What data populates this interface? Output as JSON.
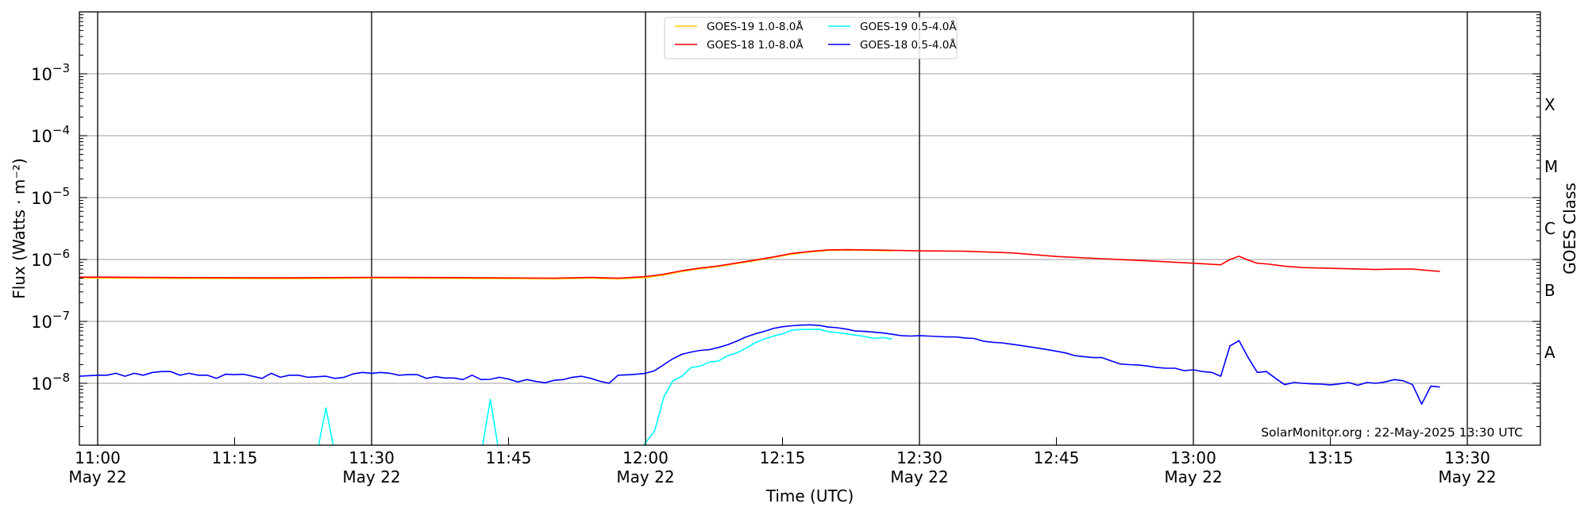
{
  "chart_data": {
    "type": "line",
    "title": "",
    "xlabel": "Time (UTC)",
    "ylabel": "Flux (Watts · m⁻²)",
    "ylabel_right": "GOES Class",
    "x_unit": "minutes after 11:00 UTC, 22 May 2025",
    "xlim_minutes": [
      -2,
      158
    ],
    "ylim": [
      1e-09,
      0.01
    ],
    "yscale": "log",
    "grid": "horizontal at decades, vertical at half-hours",
    "legend_placement": "top-center",
    "x_ticks": [
      {
        "minute": 0,
        "time": "11:00",
        "date": "May 22"
      },
      {
        "minute": 15,
        "time": "11:15",
        "date": ""
      },
      {
        "minute": 30,
        "time": "11:30",
        "date": "May 22"
      },
      {
        "minute": 45,
        "time": "11:45",
        "date": ""
      },
      {
        "minute": 60,
        "time": "12:00",
        "date": "May 22"
      },
      {
        "minute": 75,
        "time": "12:15",
        "date": ""
      },
      {
        "minute": 90,
        "time": "12:30",
        "date": "May 22"
      },
      {
        "minute": 105,
        "time": "12:45",
        "date": ""
      },
      {
        "minute": 120,
        "time": "13:00",
        "date": "May 22"
      },
      {
        "minute": 135,
        "time": "13:15",
        "date": ""
      },
      {
        "minute": 150,
        "time": "13:30",
        "date": "May 22"
      }
    ],
    "y_ticks": [
      {
        "exp": -3,
        "base": "10",
        "sup": "−3"
      },
      {
        "exp": -4,
        "base": "10",
        "sup": "−4"
      },
      {
        "exp": -5,
        "base": "10",
        "sup": "−5"
      },
      {
        "exp": -6,
        "base": "10",
        "sup": "−6"
      },
      {
        "exp": -7,
        "base": "10",
        "sup": "−7"
      },
      {
        "exp": -8,
        "base": "10",
        "sup": "−8"
      }
    ],
    "class_labels": [
      {
        "label": "X",
        "exp": -3.5
      },
      {
        "label": "M",
        "exp": -4.5
      },
      {
        "label": "C",
        "exp": -5.5
      },
      {
        "label": "B",
        "exp": -6.5
      },
      {
        "label": "A",
        "exp": -7.5
      }
    ],
    "series": [
      {
        "name": "GOES-19 1.0-8.0Å",
        "color": "#ffc800",
        "points": [
          [
            -2,
            5e-07
          ],
          [
            0,
            5e-07
          ],
          [
            10,
            4.95e-07
          ],
          [
            20,
            4.9e-07
          ],
          [
            30,
            5e-07
          ],
          [
            40,
            4.95e-07
          ],
          [
            50,
            4.85e-07
          ],
          [
            54,
            5e-07
          ],
          [
            57,
            4.85e-07
          ],
          [
            60,
            5.1e-07
          ],
          [
            62,
            5.6e-07
          ],
          [
            64,
            6.4e-07
          ],
          [
            66,
            7.1e-07
          ],
          [
            68,
            7.7e-07
          ],
          [
            70,
            8.6e-07
          ],
          [
            72,
            9.6e-07
          ],
          [
            74,
            1.08e-06
          ],
          [
            76,
            1.22e-06
          ],
          [
            78,
            1.32e-06
          ],
          [
            80,
            1.4e-06
          ],
          [
            82,
            1.42e-06
          ],
          [
            85,
            1.4e-06
          ],
          [
            87,
            1.38e-06
          ]
        ]
      },
      {
        "name": "GOES-18 1.0-8.0Å",
        "color": "#ff0000",
        "points": [
          [
            -2,
            5.2e-07
          ],
          [
            0,
            5.2e-07
          ],
          [
            10,
            5.1e-07
          ],
          [
            20,
            5.05e-07
          ],
          [
            30,
            5.15e-07
          ],
          [
            40,
            5.1e-07
          ],
          [
            50,
            5e-07
          ],
          [
            54,
            5.15e-07
          ],
          [
            57,
            5e-07
          ],
          [
            60,
            5.3e-07
          ],
          [
            62,
            5.8e-07
          ],
          [
            64,
            6.6e-07
          ],
          [
            66,
            7.3e-07
          ],
          [
            68,
            7.9e-07
          ],
          [
            70,
            8.8e-07
          ],
          [
            72,
            9.8e-07
          ],
          [
            74,
            1.1e-06
          ],
          [
            76,
            1.25e-06
          ],
          [
            78,
            1.35e-06
          ],
          [
            80,
            1.43e-06
          ],
          [
            82,
            1.44e-06
          ],
          [
            85,
            1.42e-06
          ],
          [
            90,
            1.38e-06
          ],
          [
            95,
            1.36e-06
          ],
          [
            100,
            1.28e-06
          ],
          [
            105,
            1.12e-06
          ],
          [
            110,
            1.03e-06
          ],
          [
            115,
            9.5e-07
          ],
          [
            120,
            8.7e-07
          ],
          [
            123,
            8.2e-07
          ],
          [
            124,
            1e-06
          ],
          [
            125,
            1.13e-06
          ],
          [
            126,
            9.8e-07
          ],
          [
            127,
            8.7e-07
          ],
          [
            128,
            8.5e-07
          ],
          [
            130,
            7.8e-07
          ],
          [
            132,
            7.4e-07
          ],
          [
            135,
            7.2e-07
          ],
          [
            140,
            6.9e-07
          ],
          [
            142,
            7e-07
          ],
          [
            144,
            7e-07
          ],
          [
            147,
            6.4e-07
          ]
        ]
      },
      {
        "name": "GOES-19 0.5-4.0Å",
        "color": "#00ffff",
        "points": [
          [
            -2,
            7e-10
          ],
          [
            24,
            7e-10
          ],
          [
            25,
            4e-09
          ],
          [
            26,
            7e-10
          ],
          [
            42,
            7e-10
          ],
          [
            43,
            5.5e-09
          ],
          [
            44,
            7e-10
          ],
          [
            59,
            7e-10
          ],
          [
            60,
            1.1e-09
          ],
          [
            61,
            1.7e-09
          ],
          [
            62,
            6e-09
          ],
          [
            63,
            1.1e-08
          ],
          [
            64,
            1.3e-08
          ],
          [
            65,
            1.8e-08
          ],
          [
            66,
            1.9e-08
          ],
          [
            67,
            2.2e-08
          ],
          [
            68,
            2.3e-08
          ],
          [
            69,
            2.8e-08
          ],
          [
            70,
            3.1e-08
          ],
          [
            71,
            3.7e-08
          ],
          [
            72,
            4.5e-08
          ],
          [
            73,
            5.2e-08
          ],
          [
            74,
            5.8e-08
          ],
          [
            75,
            6.3e-08
          ],
          [
            76,
            7.2e-08
          ],
          [
            77,
            7.4e-08
          ],
          [
            78,
            7.4e-08
          ],
          [
            79,
            7.5e-08
          ],
          [
            80,
            6.8e-08
          ],
          [
            81,
            6.6e-08
          ],
          [
            82,
            6.3e-08
          ],
          [
            83,
            6e-08
          ],
          [
            84,
            5.7e-08
          ],
          [
            85,
            5.3e-08
          ],
          [
            86,
            5.5e-08
          ],
          [
            87,
            5.2e-08
          ]
        ]
      },
      {
        "name": "GOES-18 0.5-4.0Å",
        "color": "#0000ff",
        "points": [
          [
            -2,
            1.3e-08
          ],
          [
            0,
            1.35e-08
          ],
          [
            1,
            1.35e-08
          ],
          [
            2,
            1.45e-08
          ],
          [
            3,
            1.3e-08
          ],
          [
            4,
            1.45e-08
          ],
          [
            5,
            1.35e-08
          ],
          [
            6,
            1.5e-08
          ],
          [
            7,
            1.55e-08
          ],
          [
            8,
            1.55e-08
          ],
          [
            9,
            1.35e-08
          ],
          [
            10,
            1.45e-08
          ],
          [
            11,
            1.35e-08
          ],
          [
            12,
            1.35e-08
          ],
          [
            13,
            1.2e-08
          ],
          [
            14,
            1.4e-08
          ],
          [
            15,
            1.38e-08
          ],
          [
            16,
            1.4e-08
          ],
          [
            18,
            1.2e-08
          ],
          [
            19,
            1.45e-08
          ],
          [
            20,
            1.25e-08
          ],
          [
            21,
            1.35e-08
          ],
          [
            22,
            1.35e-08
          ],
          [
            23,
            1.25e-08
          ],
          [
            25,
            1.3e-08
          ],
          [
            26,
            1.2e-08
          ],
          [
            27,
            1.25e-08
          ],
          [
            28,
            1.42e-08
          ],
          [
            29,
            1.5e-08
          ],
          [
            30,
            1.45e-08
          ],
          [
            31,
            1.5e-08
          ],
          [
            32,
            1.45e-08
          ],
          [
            33,
            1.35e-08
          ],
          [
            34,
            1.38e-08
          ],
          [
            35,
            1.38e-08
          ],
          [
            36,
            1.2e-08
          ],
          [
            37,
            1.28e-08
          ],
          [
            38,
            1.22e-08
          ],
          [
            39,
            1.22e-08
          ],
          [
            40,
            1.15e-08
          ],
          [
            41,
            1.35e-08
          ],
          [
            42,
            1.15e-08
          ],
          [
            43,
            1.16e-08
          ],
          [
            44,
            1.25e-08
          ],
          [
            45,
            1.17e-08
          ],
          [
            46,
            1.05e-08
          ],
          [
            47,
            1.15e-08
          ],
          [
            48,
            1.07e-08
          ],
          [
            49,
            1.02e-08
          ],
          [
            50,
            1.12e-08
          ],
          [
            51,
            1.15e-08
          ],
          [
            52,
            1.25e-08
          ],
          [
            53,
            1.3e-08
          ],
          [
            54,
            1.2e-08
          ],
          [
            55,
            1.08e-08
          ],
          [
            56,
            1e-08
          ],
          [
            57,
            1.35e-08
          ],
          [
            58,
            1.37e-08
          ],
          [
            59,
            1.4e-08
          ],
          [
            60,
            1.45e-08
          ],
          [
            61,
            1.6e-08
          ],
          [
            62,
            2e-08
          ],
          [
            63,
            2.5e-08
          ],
          [
            64,
            2.95e-08
          ],
          [
            65,
            3.2e-08
          ],
          [
            66,
            3.4e-08
          ],
          [
            67,
            3.5e-08
          ],
          [
            68,
            3.8e-08
          ],
          [
            69,
            4.2e-08
          ],
          [
            70,
            4.8e-08
          ],
          [
            71,
            5.6e-08
          ],
          [
            72,
            6.3e-08
          ],
          [
            73,
            6.9e-08
          ],
          [
            74,
            7.7e-08
          ],
          [
            75,
            8.2e-08
          ],
          [
            76,
            8.5e-08
          ],
          [
            77,
            8.7e-08
          ],
          [
            78,
            8.8e-08
          ],
          [
            79,
            8.6e-08
          ],
          [
            80,
            8.1e-08
          ],
          [
            81,
            7.9e-08
          ],
          [
            82,
            7.5e-08
          ],
          [
            83,
            7e-08
          ],
          [
            84,
            6.9e-08
          ],
          [
            85,
            6.7e-08
          ],
          [
            86,
            6.5e-08
          ],
          [
            87,
            6.2e-08
          ],
          [
            88,
            5.9e-08
          ],
          [
            89,
            5.8e-08
          ],
          [
            90,
            5.9e-08
          ],
          [
            91,
            5.8e-08
          ],
          [
            92,
            5.7e-08
          ],
          [
            93,
            5.6e-08
          ],
          [
            94,
            5.6e-08
          ],
          [
            95,
            5.4e-08
          ],
          [
            96,
            5.3e-08
          ],
          [
            97,
            4.8e-08
          ],
          [
            98,
            4.6e-08
          ],
          [
            99,
            4.5e-08
          ],
          [
            100,
            4.3e-08
          ],
          [
            101,
            4.1e-08
          ],
          [
            102,
            3.9e-08
          ],
          [
            103,
            3.7e-08
          ],
          [
            104,
            3.5e-08
          ],
          [
            105,
            3.3e-08
          ],
          [
            106,
            3.1e-08
          ],
          [
            107,
            2.8e-08
          ],
          [
            108,
            2.7e-08
          ],
          [
            109,
            2.6e-08
          ],
          [
            110,
            2.6e-08
          ],
          [
            111,
            2.3e-08
          ],
          [
            112,
            2.05e-08
          ],
          [
            113,
            2e-08
          ],
          [
            114,
            1.98e-08
          ],
          [
            115,
            1.9e-08
          ],
          [
            116,
            1.8e-08
          ],
          [
            117,
            1.75e-08
          ],
          [
            118,
            1.75e-08
          ],
          [
            119,
            1.6e-08
          ],
          [
            120,
            1.65e-08
          ],
          [
            121,
            1.55e-08
          ],
          [
            122,
            1.5e-08
          ],
          [
            123,
            1.3e-08
          ],
          [
            124,
            4e-08
          ],
          [
            125,
            4.9e-08
          ],
          [
            126,
            2.6e-08
          ],
          [
            127,
            1.5e-08
          ],
          [
            128,
            1.55e-08
          ],
          [
            129,
            1.2e-08
          ],
          [
            130,
            9.5e-09
          ],
          [
            131,
            1.03e-08
          ],
          [
            132,
            1e-08
          ],
          [
            133,
            9.8e-09
          ],
          [
            134,
            9.7e-09
          ],
          [
            135,
            9.4e-09
          ],
          [
            136,
            9.8e-09
          ],
          [
            137,
            1.03e-08
          ],
          [
            138,
            9.3e-09
          ],
          [
            139,
            1.03e-08
          ],
          [
            140,
            1e-08
          ],
          [
            141,
            1.05e-08
          ],
          [
            142,
            1.15e-08
          ],
          [
            143,
            1.1e-08
          ],
          [
            144,
            9.5e-09
          ],
          [
            145,
            4.6e-09
          ],
          [
            146,
            9e-09
          ],
          [
            147,
            8.7e-09
          ]
        ]
      }
    ],
    "annotation": "SolarMonitor.org : 22-May-2025 13:30 UTC"
  }
}
